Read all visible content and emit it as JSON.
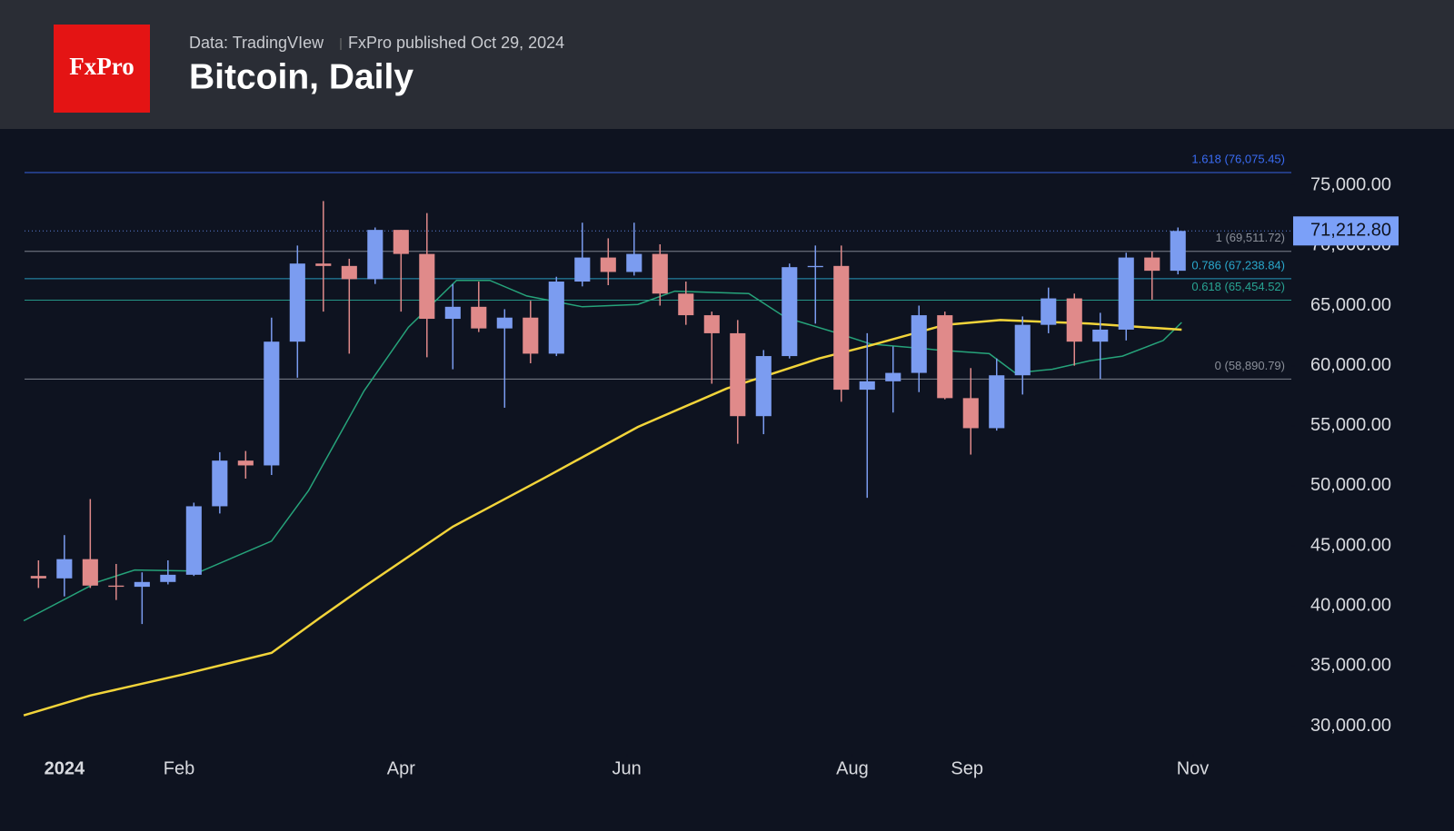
{
  "header": {
    "logo": "FxPro",
    "source": "Data: TradingVIew",
    "published": "FxPro published Oct 29, 2024"
  },
  "chart_data": {
    "type": "candlestick",
    "title": "Bitcoin, Daily",
    "x": [
      -7,
      0,
      7,
      14,
      21,
      28,
      35,
      42,
      49,
      56,
      63,
      70,
      77,
      84,
      91,
      98,
      105,
      112,
      119,
      126,
      133,
      140,
      147,
      154,
      161,
      168,
      175,
      182,
      189,
      196,
      203,
      210,
      217,
      224,
      231,
      238,
      245,
      252,
      259,
      266,
      273,
      280,
      287,
      294,
      301
    ],
    "open": [
      42500,
      42300,
      43900,
      41700,
      41600,
      42000,
      42600,
      48300,
      52100,
      51700,
      62000,
      68500,
      68300,
      67200,
      71300,
      69300,
      63900,
      64900,
      63100,
      64000,
      61000,
      67000,
      69000,
      67800,
      69300,
      66000,
      64200,
      62700,
      55800,
      60800,
      68200,
      68300,
      58000,
      58700,
      59400,
      64200,
      57300,
      54800,
      59200,
      63400,
      65600,
      62000,
      63000,
      69000,
      67900
    ],
    "high": [
      43800,
      45900,
      48900,
      43500,
      42800,
      43800,
      48600,
      52800,
      52900,
      64000,
      70000,
      73700,
      68900,
      71500,
      71300,
      72700,
      66800,
      67000,
      64700,
      65400,
      67400,
      71900,
      70600,
      71900,
      70100,
      67000,
      64500,
      63800,
      61300,
      68500,
      70000,
      70000,
      62700,
      61600,
      65000,
      64500,
      59800,
      60600,
      64100,
      66500,
      66000,
      64400,
      69400,
      69500,
      71500
    ],
    "low": [
      41500,
      40800,
      41500,
      40500,
      38500,
      41800,
      42500,
      47700,
      50600,
      50900,
      59000,
      64500,
      61000,
      66800,
      64500,
      60700,
      59700,
      62800,
      56500,
      60200,
      60800,
      66600,
      66700,
      67500,
      65000,
      63400,
      58500,
      53500,
      54300,
      60600,
      63500,
      57000,
      49000,
      56100,
      57800,
      57200,
      52600,
      54600,
      57600,
      62700,
      60000,
      58900,
      62100,
      65500,
      67600
    ],
    "close": [
      42300,
      43900,
      41700,
      41600,
      42000,
      42600,
      48300,
      52100,
      51700,
      62000,
      68500,
      68300,
      67200,
      71300,
      69300,
      63900,
      64900,
      63100,
      64000,
      61000,
      67000,
      69000,
      67800,
      69300,
      66000,
      64200,
      62700,
      55800,
      60800,
      68200,
      68300,
      58000,
      58700,
      59400,
      64200,
      57300,
      54800,
      59200,
      63400,
      65600,
      62000,
      63000,
      69000,
      67900,
      71212.8
    ],
    "up_color": "#7b9cf0",
    "down_color": "#e08a8a",
    "series": [
      {
        "color": "#26a37a",
        "x": [
          -11,
          9,
          19,
          37,
          56,
          66,
          81,
          93,
          106,
          115,
          125,
          140,
          155,
          165,
          185,
          195,
          208,
          218,
          233,
          236,
          250,
          257,
          267,
          277,
          286,
          297,
          302
        ],
        "values": [
          38770,
          42000,
          43000,
          42900,
          45400,
          49600,
          57900,
          63200,
          67100,
          67100,
          65800,
          64900,
          65100,
          66200,
          66000,
          64000,
          62800,
          61800,
          61400,
          61300,
          61000,
          59400,
          59700,
          60400,
          60800,
          62100,
          63600
        ]
      },
      {
        "color": "#f2d43a",
        "x": [
          -11,
          7,
          32,
          56,
          69,
          81,
          105,
          130,
          155,
          179,
          204,
          218,
          238,
          253,
          277,
          302
        ],
        "values": [
          30900,
          32550,
          34300,
          36100,
          39000,
          41600,
          46600,
          50700,
          54900,
          58100,
          60600,
          61700,
          63400,
          63800,
          63500,
          63000
        ]
      }
    ],
    "levels": [
      {
        "value": 76075.45,
        "label": "1.618 (76,075.45)",
        "color": "#3a6cf4"
      },
      {
        "value": 69511.72,
        "label": "1 (69,511.72)",
        "color": "#8a8f99"
      },
      {
        "value": 67238.84,
        "label": "0.786 (67,238.84)",
        "color": "#2aa8cc"
      },
      {
        "value": 65454.52,
        "label": "0.618 (65,454.52)",
        "color": "#28a392"
      },
      {
        "value": 58890.79,
        "label": "0 (58,890.79)",
        "color": "#8a8f99"
      }
    ],
    "last_price": {
      "value": 71212.8,
      "label": "71,212.80"
    },
    "xlim": [
      -17.4,
      331.4
    ],
    "ylim": [
      27700,
      79700
    ],
    "xticks": [
      {
        "value": 0,
        "label": "2024"
      },
      {
        "value": 31,
        "label": "Feb"
      },
      {
        "value": 91,
        "label": "Apr"
      },
      {
        "value": 152,
        "label": "Jun"
      },
      {
        "value": 213,
        "label": "Aug"
      },
      {
        "value": 244,
        "label": "Sep"
      },
      {
        "value": 305,
        "label": "Nov"
      }
    ],
    "yticks": [
      {
        "value": 30000,
        "label": "30,000.00"
      },
      {
        "value": 35000,
        "label": "35,000.00"
      },
      {
        "value": 40000,
        "label": "40,000.00"
      },
      {
        "value": 45000,
        "label": "45,000.00"
      },
      {
        "value": 50000,
        "label": "50,000.00"
      },
      {
        "value": 55000,
        "label": "55,000.00"
      },
      {
        "value": 60000,
        "label": "60,000.00"
      },
      {
        "value": 65000,
        "label": "65,000.00"
      },
      {
        "value": 70000,
        "label": "70,000.00"
      },
      {
        "value": 75000,
        "label": "75,000.00"
      }
    ]
  }
}
